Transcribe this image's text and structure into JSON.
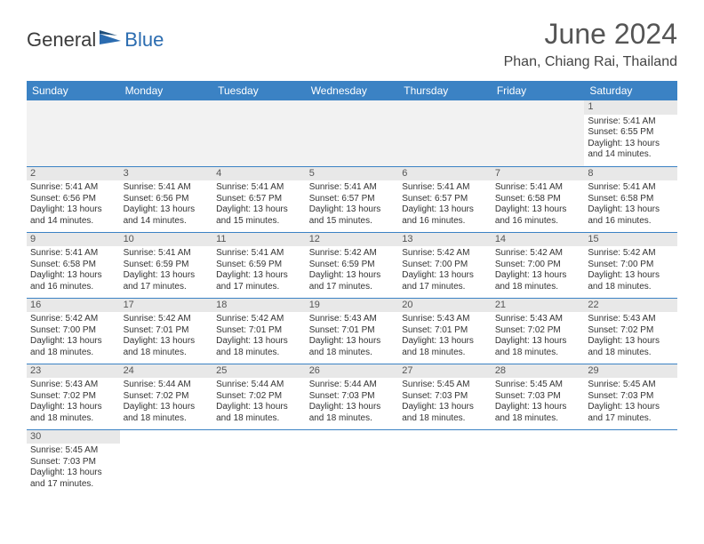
{
  "logo": {
    "dark": "General",
    "blue": "Blue"
  },
  "title": "June 2024",
  "location": "Phan, Chiang Rai, Thailand",
  "weekdays": [
    "Sunday",
    "Monday",
    "Tuesday",
    "Wednesday",
    "Thursday",
    "Friday",
    "Saturday"
  ],
  "colors": {
    "header_bg": "#3b82c4",
    "header_text": "#ffffff",
    "daynum_bg": "#e8e8e8",
    "logo_blue": "#2b6cb0",
    "text": "#333333"
  },
  "weeks": [
    [
      null,
      null,
      null,
      null,
      null,
      null,
      {
        "n": "1",
        "sr": "Sunrise: 5:41 AM",
        "ss": "Sunset: 6:55 PM",
        "dl": "Daylight: 13 hours and 14 minutes."
      }
    ],
    [
      {
        "n": "2",
        "sr": "Sunrise: 5:41 AM",
        "ss": "Sunset: 6:56 PM",
        "dl": "Daylight: 13 hours and 14 minutes."
      },
      {
        "n": "3",
        "sr": "Sunrise: 5:41 AM",
        "ss": "Sunset: 6:56 PM",
        "dl": "Daylight: 13 hours and 14 minutes."
      },
      {
        "n": "4",
        "sr": "Sunrise: 5:41 AM",
        "ss": "Sunset: 6:57 PM",
        "dl": "Daylight: 13 hours and 15 minutes."
      },
      {
        "n": "5",
        "sr": "Sunrise: 5:41 AM",
        "ss": "Sunset: 6:57 PM",
        "dl": "Daylight: 13 hours and 15 minutes."
      },
      {
        "n": "6",
        "sr": "Sunrise: 5:41 AM",
        "ss": "Sunset: 6:57 PM",
        "dl": "Daylight: 13 hours and 16 minutes."
      },
      {
        "n": "7",
        "sr": "Sunrise: 5:41 AM",
        "ss": "Sunset: 6:58 PM",
        "dl": "Daylight: 13 hours and 16 minutes."
      },
      {
        "n": "8",
        "sr": "Sunrise: 5:41 AM",
        "ss": "Sunset: 6:58 PM",
        "dl": "Daylight: 13 hours and 16 minutes."
      }
    ],
    [
      {
        "n": "9",
        "sr": "Sunrise: 5:41 AM",
        "ss": "Sunset: 6:58 PM",
        "dl": "Daylight: 13 hours and 16 minutes."
      },
      {
        "n": "10",
        "sr": "Sunrise: 5:41 AM",
        "ss": "Sunset: 6:59 PM",
        "dl": "Daylight: 13 hours and 17 minutes."
      },
      {
        "n": "11",
        "sr": "Sunrise: 5:41 AM",
        "ss": "Sunset: 6:59 PM",
        "dl": "Daylight: 13 hours and 17 minutes."
      },
      {
        "n": "12",
        "sr": "Sunrise: 5:42 AM",
        "ss": "Sunset: 6:59 PM",
        "dl": "Daylight: 13 hours and 17 minutes."
      },
      {
        "n": "13",
        "sr": "Sunrise: 5:42 AM",
        "ss": "Sunset: 7:00 PM",
        "dl": "Daylight: 13 hours and 17 minutes."
      },
      {
        "n": "14",
        "sr": "Sunrise: 5:42 AM",
        "ss": "Sunset: 7:00 PM",
        "dl": "Daylight: 13 hours and 18 minutes."
      },
      {
        "n": "15",
        "sr": "Sunrise: 5:42 AM",
        "ss": "Sunset: 7:00 PM",
        "dl": "Daylight: 13 hours and 18 minutes."
      }
    ],
    [
      {
        "n": "16",
        "sr": "Sunrise: 5:42 AM",
        "ss": "Sunset: 7:00 PM",
        "dl": "Daylight: 13 hours and 18 minutes."
      },
      {
        "n": "17",
        "sr": "Sunrise: 5:42 AM",
        "ss": "Sunset: 7:01 PM",
        "dl": "Daylight: 13 hours and 18 minutes."
      },
      {
        "n": "18",
        "sr": "Sunrise: 5:42 AM",
        "ss": "Sunset: 7:01 PM",
        "dl": "Daylight: 13 hours and 18 minutes."
      },
      {
        "n": "19",
        "sr": "Sunrise: 5:43 AM",
        "ss": "Sunset: 7:01 PM",
        "dl": "Daylight: 13 hours and 18 minutes."
      },
      {
        "n": "20",
        "sr": "Sunrise: 5:43 AM",
        "ss": "Sunset: 7:01 PM",
        "dl": "Daylight: 13 hours and 18 minutes."
      },
      {
        "n": "21",
        "sr": "Sunrise: 5:43 AM",
        "ss": "Sunset: 7:02 PM",
        "dl": "Daylight: 13 hours and 18 minutes."
      },
      {
        "n": "22",
        "sr": "Sunrise: 5:43 AM",
        "ss": "Sunset: 7:02 PM",
        "dl": "Daylight: 13 hours and 18 minutes."
      }
    ],
    [
      {
        "n": "23",
        "sr": "Sunrise: 5:43 AM",
        "ss": "Sunset: 7:02 PM",
        "dl": "Daylight: 13 hours and 18 minutes."
      },
      {
        "n": "24",
        "sr": "Sunrise: 5:44 AM",
        "ss": "Sunset: 7:02 PM",
        "dl": "Daylight: 13 hours and 18 minutes."
      },
      {
        "n": "25",
        "sr": "Sunrise: 5:44 AM",
        "ss": "Sunset: 7:02 PM",
        "dl": "Daylight: 13 hours and 18 minutes."
      },
      {
        "n": "26",
        "sr": "Sunrise: 5:44 AM",
        "ss": "Sunset: 7:03 PM",
        "dl": "Daylight: 13 hours and 18 minutes."
      },
      {
        "n": "27",
        "sr": "Sunrise: 5:45 AM",
        "ss": "Sunset: 7:03 PM",
        "dl": "Daylight: 13 hours and 18 minutes."
      },
      {
        "n": "28",
        "sr": "Sunrise: 5:45 AM",
        "ss": "Sunset: 7:03 PM",
        "dl": "Daylight: 13 hours and 18 minutes."
      },
      {
        "n": "29",
        "sr": "Sunrise: 5:45 AM",
        "ss": "Sunset: 7:03 PM",
        "dl": "Daylight: 13 hours and 17 minutes."
      }
    ],
    [
      {
        "n": "30",
        "sr": "Sunrise: 5:45 AM",
        "ss": "Sunset: 7:03 PM",
        "dl": "Daylight: 13 hours and 17 minutes."
      },
      null,
      null,
      null,
      null,
      null,
      null
    ]
  ]
}
